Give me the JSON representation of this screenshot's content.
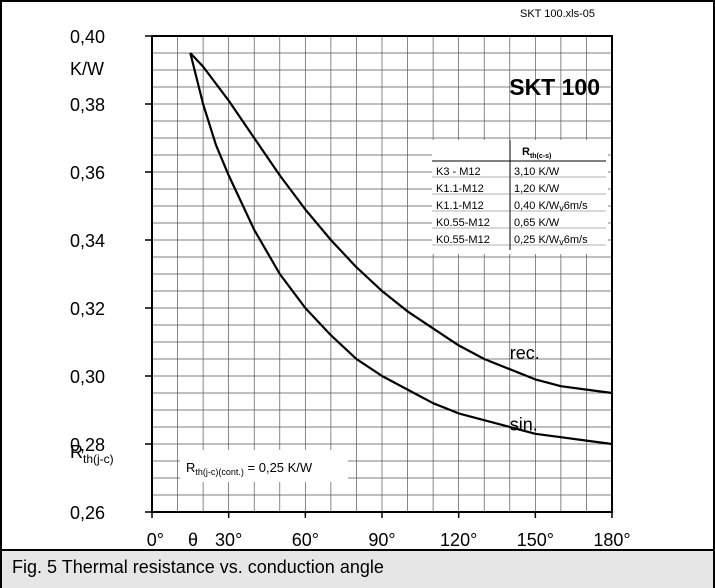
{
  "source_label": "SKT 100.xls-05",
  "caption": "Fig. 5 Thermal resistance vs. conduction angle",
  "chart_data": {
    "type": "line",
    "title": "SKT 100",
    "ylabel_unit": "K/W",
    "ylabel_main": "R",
    "ylabel_sub": "th(j-c)",
    "xlabel_symbol": "θ",
    "x_ticks": [
      "0°",
      "30°",
      "60°",
      "90°",
      "120°",
      "150°",
      "180°"
    ],
    "y_ticks": [
      "0,26",
      "0,28",
      "0,30",
      "0,32",
      "0,34",
      "0,36",
      "0,38",
      "0,40"
    ],
    "xlim": [
      0,
      180
    ],
    "ylim": [
      0.26,
      0.4
    ],
    "grid": true,
    "series": [
      {
        "name": "rec.",
        "x": [
          15,
          20,
          30,
          40,
          50,
          60,
          70,
          80,
          90,
          100,
          110,
          120,
          130,
          140,
          150,
          160,
          170,
          180
        ],
        "values": [
          0.395,
          0.391,
          0.381,
          0.37,
          0.359,
          0.349,
          0.34,
          0.332,
          0.325,
          0.319,
          0.314,
          0.309,
          0.305,
          0.302,
          0.299,
          0.297,
          0.296,
          0.295
        ]
      },
      {
        "name": "sin.",
        "x": [
          15,
          20,
          25,
          30,
          40,
          50,
          60,
          70,
          80,
          90,
          100,
          110,
          120,
          130,
          140,
          150,
          160,
          170,
          180
        ],
        "values": [
          0.395,
          0.38,
          0.368,
          0.359,
          0.343,
          0.33,
          0.32,
          0.312,
          0.305,
          0.3,
          0.296,
          0.292,
          0.289,
          0.287,
          0.285,
          0.283,
          0.282,
          0.281,
          0.28
        ]
      }
    ],
    "annotation": {
      "main": "R",
      "sub": "th(j-c)(cont.)",
      "rest": " = 0,25 K/W"
    },
    "table": {
      "header_main": "R",
      "header_sub": "th(c-s)",
      "rows": [
        [
          "K3  - M12",
          "3,10 K/W"
        ],
        [
          "K1.1-M12",
          "1,20 K/W"
        ],
        [
          "K1.1-M12",
          "0,40 K/W",
          "v",
          "6m/s"
        ],
        [
          "K0.55-M12",
          "0,65 K/W"
        ],
        [
          "K0.55-M12",
          "0,25 K/W",
          "v",
          "6m/s"
        ]
      ]
    }
  }
}
